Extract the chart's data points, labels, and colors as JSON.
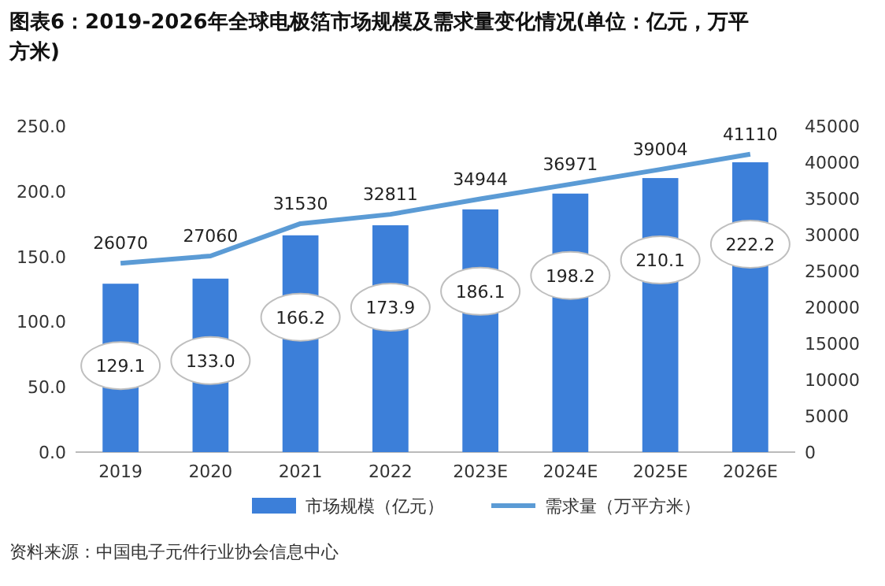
{
  "chart_data": {
    "type": "bar",
    "title": "图表6：2019-2026年全球电极箔市场规模及需求量变化情况(单位：亿元，万平方米)",
    "categories": [
      "2019",
      "2020",
      "2021",
      "2022",
      "2023E",
      "2024E",
      "2025E",
      "2026E"
    ],
    "series": [
      {
        "name": "市场规模（亿元）",
        "color": "#3c7fd9",
        "values": [
          129.1,
          133.0,
          166.2,
          173.9,
          186.1,
          198.2,
          210.1,
          222.2
        ],
        "value_labels": [
          "129.1",
          "133.0",
          "166.2",
          "173.9",
          "186.1",
          "198.2",
          "210.1",
          "222.2"
        ]
      },
      {
        "name": "需求量（万平方米）",
        "type": "line",
        "axis": "y2",
        "color": "#5b9bd5",
        "values": [
          26070,
          27060,
          31530,
          32811,
          34944,
          36971,
          39004,
          41110
        ]
      }
    ],
    "ylim": [
      0,
      250
    ],
    "yticks": [
      {
        "value": 0,
        "label": "0.0"
      },
      {
        "value": 50,
        "label": "50.0"
      },
      {
        "value": 100,
        "label": "100.0"
      },
      {
        "value": 150,
        "label": "150.0"
      },
      {
        "value": 200,
        "label": "200.0"
      },
      {
        "value": 250,
        "label": "250.0"
      }
    ],
    "y2lim": [
      0,
      45000
    ],
    "y2ticks": [
      0,
      5000,
      10000,
      15000,
      20000,
      25000,
      30000,
      35000,
      40000,
      45000
    ],
    "data_labels": true,
    "legend": "bottom",
    "grid": false,
    "annotations": [
      "资料来源：中国电子元件行业协会信息中心"
    ]
  }
}
